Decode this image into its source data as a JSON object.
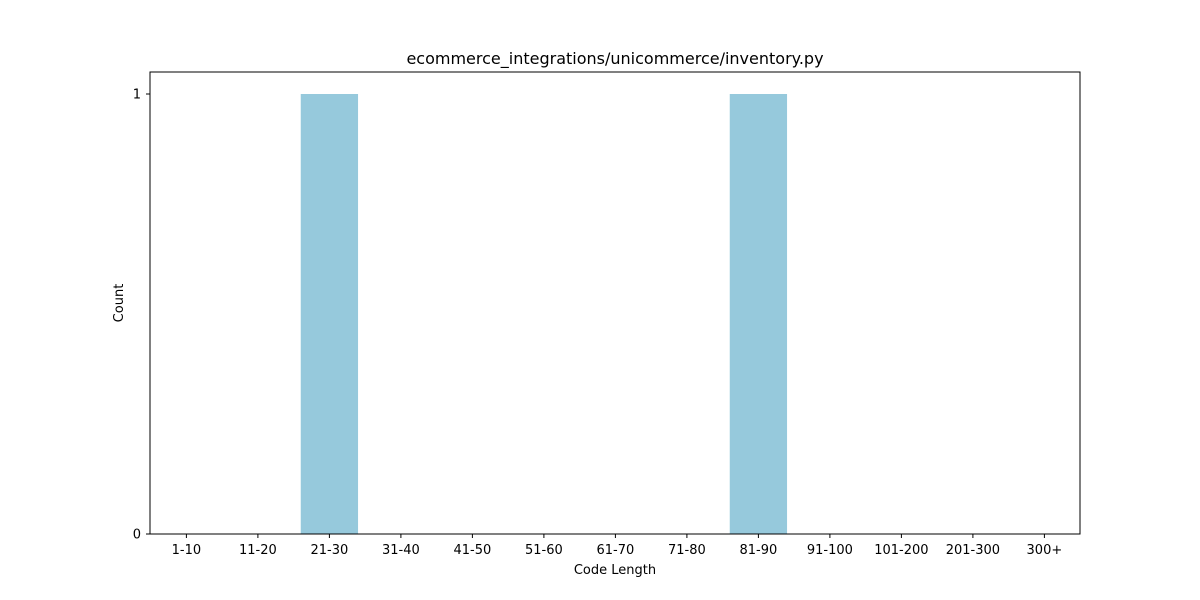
{
  "chart_data": {
    "type": "bar",
    "title": "ecommerce_integrations/unicommerce/inventory.py",
    "xlabel": "Code Length",
    "ylabel": "Count",
    "categories": [
      "1-10",
      "11-20",
      "21-30",
      "31-40",
      "41-50",
      "51-60",
      "61-70",
      "71-80",
      "81-90",
      "91-100",
      "101-200",
      "201-300",
      "300+"
    ],
    "values": [
      0,
      0,
      1,
      0,
      0,
      0,
      0,
      0,
      1,
      0,
      0,
      0,
      0
    ],
    "ylim": [
      0,
      1.05
    ],
    "yticks": [
      0,
      1
    ],
    "bar_color": "#96c9dc",
    "grid": false,
    "legend": "none"
  }
}
